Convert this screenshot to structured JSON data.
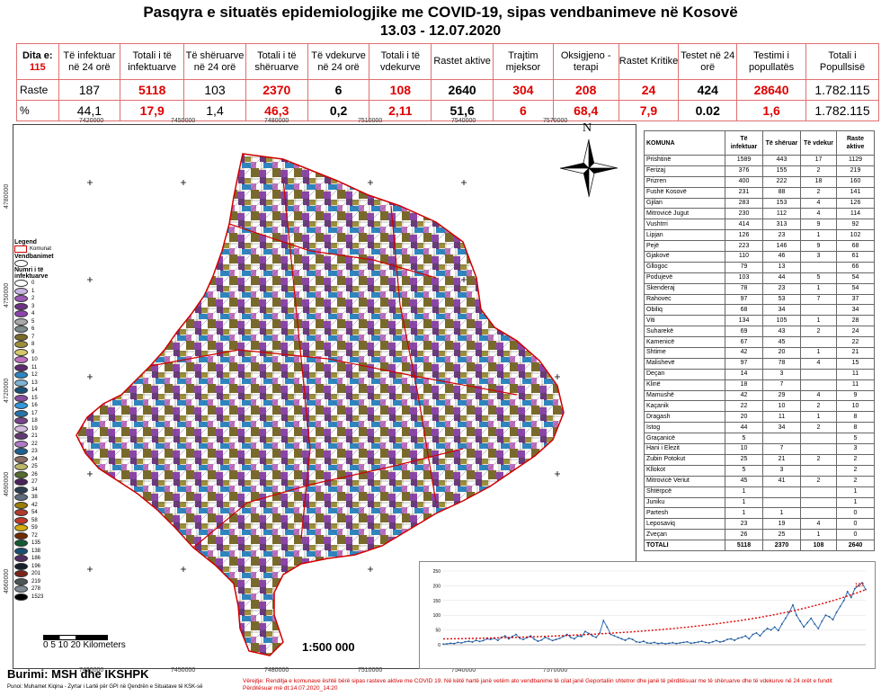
{
  "title": "Pasqyra e situatës epidemiologjike me COVID-19, sipas vendbanimeve në Kosovë",
  "subtitle": "13.03 - 12.07.2020",
  "stats": {
    "dita_label": "Dita e:",
    "dita_value": "115",
    "headers": [
      "Të infektuar në 24 orë",
      "Totali i të infektuarve",
      "Të shëruarve në 24 orë",
      "Totali i të shëruarve",
      "Të vdekurve në 24 orë",
      "Totali i të vdekurve",
      "Rastet aktive",
      "Trajtim mjeksor",
      "Oksigjeno - terapi",
      "Rastet Kritike",
      "Testet në 24 orë",
      "Testimi i popullatës",
      "Totali i Popullsisë"
    ],
    "row1_label": "Raste",
    "row1": [
      "187",
      "5118",
      "103",
      "2370",
      "6",
      "108",
      "2640",
      "304",
      "208",
      "24",
      "424",
      "28640",
      "1.782.115"
    ],
    "row2_label": "%",
    "row2": [
      "44,1",
      "17,9",
      "1,4",
      "46,3",
      "0,2",
      "2,11",
      "51,6",
      "6",
      "68,4",
      "7,9",
      "0.02",
      "1,6",
      "1.782.115"
    ]
  },
  "map": {
    "x_ticks": [
      "7420000",
      "7450000",
      "7480000",
      "7510000",
      "7540000",
      "7570000"
    ],
    "y_ticks": [
      "4780000",
      "4750000",
      "4720000",
      "4690000",
      "4660000"
    ],
    "north": "N",
    "scale_label": "0  5  10      20 Kilometers",
    "ratio": "1:500 000",
    "legend": {
      "title": "Legend",
      "komunat": "Komunat",
      "vendbanimet": "Vendbanimet",
      "numri": "Numri i të infektuarve",
      "items": [
        {
          "label": "0",
          "color": "#ffffff"
        },
        {
          "label": "1",
          "color": "#c8b4e0"
        },
        {
          "label": "2",
          "color": "#9b59b6"
        },
        {
          "label": "3",
          "color": "#6c3483"
        },
        {
          "label": "4",
          "color": "#8e44ad"
        },
        {
          "label": "5",
          "color": "#a9a9a9"
        },
        {
          "label": "6",
          "color": "#7f8c8d"
        },
        {
          "label": "7",
          "color": "#7a6a2a"
        },
        {
          "label": "8",
          "color": "#9c8f3a"
        },
        {
          "label": "9",
          "color": "#d4c96a"
        },
        {
          "label": "10",
          "color": "#c070c0"
        },
        {
          "label": "11",
          "color": "#5b2c6f"
        },
        {
          "label": "12",
          "color": "#2e86c1"
        },
        {
          "label": "13",
          "color": "#7fb3d5"
        },
        {
          "label": "14",
          "color": "#1a5276"
        },
        {
          "label": "15",
          "color": "#884ea0"
        },
        {
          "label": "16",
          "color": "#3498db"
        },
        {
          "label": "17",
          "color": "#2874a6"
        },
        {
          "label": "18",
          "color": "#76448a"
        },
        {
          "label": "19",
          "color": "#d7bde2"
        },
        {
          "label": "21",
          "color": "#633974"
        },
        {
          "label": "22",
          "color": "#af7ac5"
        },
        {
          "label": "23",
          "color": "#1f618d"
        },
        {
          "label": "24",
          "color": "#8d6e63"
        },
        {
          "label": "25",
          "color": "#bdb76b"
        },
        {
          "label": "26",
          "color": "#556b2f"
        },
        {
          "label": "27",
          "color": "#4a235a"
        },
        {
          "label": "34",
          "color": "#2c3e50"
        },
        {
          "label": "38",
          "color": "#5d6d7e"
        },
        {
          "label": "42",
          "color": "#9a7d0a"
        },
        {
          "label": "54",
          "color": "#b03a2e"
        },
        {
          "label": "58",
          "color": "#c0392b"
        },
        {
          "label": "59",
          "color": "#d4ac0d"
        },
        {
          "label": "72",
          "color": "#6e2c00"
        },
        {
          "label": "135",
          "color": "#145a32"
        },
        {
          "label": "138",
          "color": "#1b4f72"
        },
        {
          "label": "186",
          "color": "#512e5f"
        },
        {
          "label": "196",
          "color": "#17202a"
        },
        {
          "label": "201",
          "color": "#7b241c"
        },
        {
          "label": "219",
          "color": "#4d5656"
        },
        {
          "label": "278",
          "color": "#808b96"
        },
        {
          "label": "1523",
          "color": "#000000"
        }
      ]
    }
  },
  "komuna_table": {
    "headers": [
      "KOMUNA",
      "Të infektuar",
      "Të shëruar",
      "Të vdekur",
      "Raste aktive"
    ],
    "rows": [
      [
        "Prishtinë",
        "1589",
        "443",
        "17",
        "1129"
      ],
      [
        "Ferizaj",
        "376",
        "155",
        "2",
        "219"
      ],
      [
        "Prizren",
        "400",
        "222",
        "18",
        "160"
      ],
      [
        "Fushë Kosovë",
        "231",
        "88",
        "2",
        "141"
      ],
      [
        "Gjilan",
        "283",
        "153",
        "4",
        "126"
      ],
      [
        "Mitrovicë Jugut",
        "230",
        "112",
        "4",
        "114"
      ],
      [
        "Vushtrri",
        "414",
        "313",
        "9",
        "92"
      ],
      [
        "Lipjan",
        "126",
        "23",
        "1",
        "102"
      ],
      [
        "Pejë",
        "223",
        "146",
        "9",
        "68"
      ],
      [
        "Gjakovë",
        "110",
        "46",
        "3",
        "61"
      ],
      [
        "Gllogoc",
        "79",
        "13",
        "",
        "66"
      ],
      [
        "Podujevë",
        "103",
        "44",
        "5",
        "54"
      ],
      [
        "Skenderaj",
        "78",
        "23",
        "1",
        "54"
      ],
      [
        "Rahovec",
        "97",
        "53",
        "7",
        "37"
      ],
      [
        "Obiliq",
        "68",
        "34",
        "",
        "34"
      ],
      [
        "Viti",
        "134",
        "105",
        "1",
        "28"
      ],
      [
        "Suharekë",
        "69",
        "43",
        "2",
        "24"
      ],
      [
        "Kamenicë",
        "67",
        "45",
        "",
        "22"
      ],
      [
        "Shtime",
        "42",
        "20",
        "1",
        "21"
      ],
      [
        "Malishevë",
        "97",
        "78",
        "4",
        "15"
      ],
      [
        "Deçan",
        "14",
        "3",
        "",
        "11"
      ],
      [
        "Klinë",
        "18",
        "7",
        "",
        "11"
      ],
      [
        "Mamushë",
        "42",
        "29",
        "4",
        "9"
      ],
      [
        "Kaçanik",
        "22",
        "10",
        "2",
        "10"
      ],
      [
        "Dragash",
        "20",
        "11",
        "1",
        "8"
      ],
      [
        "Istog",
        "44",
        "34",
        "2",
        "8"
      ],
      [
        "Graçanicë",
        "5",
        "",
        "",
        "5"
      ],
      [
        "Hani i Elezit",
        "10",
        "7",
        "",
        "3"
      ],
      [
        "Zubin Potokut",
        "25",
        "21",
        "2",
        "2"
      ],
      [
        "Kllokot",
        "5",
        "3",
        "",
        "2"
      ],
      [
        "Mitrovicë Veriut",
        "45",
        "41",
        "2",
        "2"
      ],
      [
        "Shtërpcë",
        "1",
        "",
        "",
        "1"
      ],
      [
        "Juniku",
        "1",
        "",
        "",
        "1"
      ],
      [
        "Partesh",
        "1",
        "1",
        "",
        "0"
      ],
      [
        "Leposaviq",
        "23",
        "19",
        "4",
        "0"
      ],
      [
        "Zveçan",
        "26",
        "25",
        "1",
        "0"
      ]
    ],
    "total": [
      "TOTALI",
      "5118",
      "2370",
      "108",
      "2640"
    ]
  },
  "chart_data": {
    "type": "line",
    "y_ticks": [
      "250",
      "200",
      "150",
      "100",
      "50",
      "0"
    ],
    "ylim": [
      0,
      250
    ],
    "last_label": "187",
    "values": [
      2,
      3,
      5,
      4,
      8,
      6,
      10,
      12,
      9,
      15,
      11,
      14,
      20,
      18,
      22,
      15,
      25,
      30,
      20,
      28,
      35,
      22,
      18,
      24,
      30,
      19,
      12,
      16,
      25,
      20,
      14,
      18,
      22,
      28,
      35,
      25,
      20,
      30,
      28,
      45,
      38,
      30,
      25,
      40,
      82,
      60,
      35,
      30,
      25,
      20,
      15,
      22,
      18,
      10,
      8,
      12,
      6,
      5,
      8,
      4,
      6,
      3,
      5,
      7,
      4,
      6,
      8,
      10,
      5,
      7,
      9,
      12,
      8,
      6,
      10,
      14,
      9,
      12,
      18,
      20,
      15,
      22,
      25,
      30,
      20,
      35,
      40,
      30,
      45,
      55,
      50,
      60,
      48,
      70,
      90,
      110,
      135,
      100,
      80,
      60,
      75,
      90,
      70,
      55,
      80,
      100,
      95,
      85,
      110,
      130,
      150,
      180,
      160,
      190,
      200,
      210,
      187
    ],
    "trend": "exponential"
  },
  "footer": {
    "burimi": "Burimi: MSH dhe IKSHPK",
    "punoi": "Punoi: Muhamet Kiqina - Zyrtar i Lartë për GPI në Qendrën e Situatave të KSK-së",
    "note1": "Vërejtje: Renditja e komunave është bërë sipas rasteve aktive me COVID 19. Në këtë hartë janë vetëm ato vendbanime të cilat janë Geportaliin shtetror dhe janë të përditësuar me  të shëruarve dhe të vdekurve në 24 orët e fundit",
    "note2": "Përditësuar më dt:14.07.2020_14:20"
  }
}
